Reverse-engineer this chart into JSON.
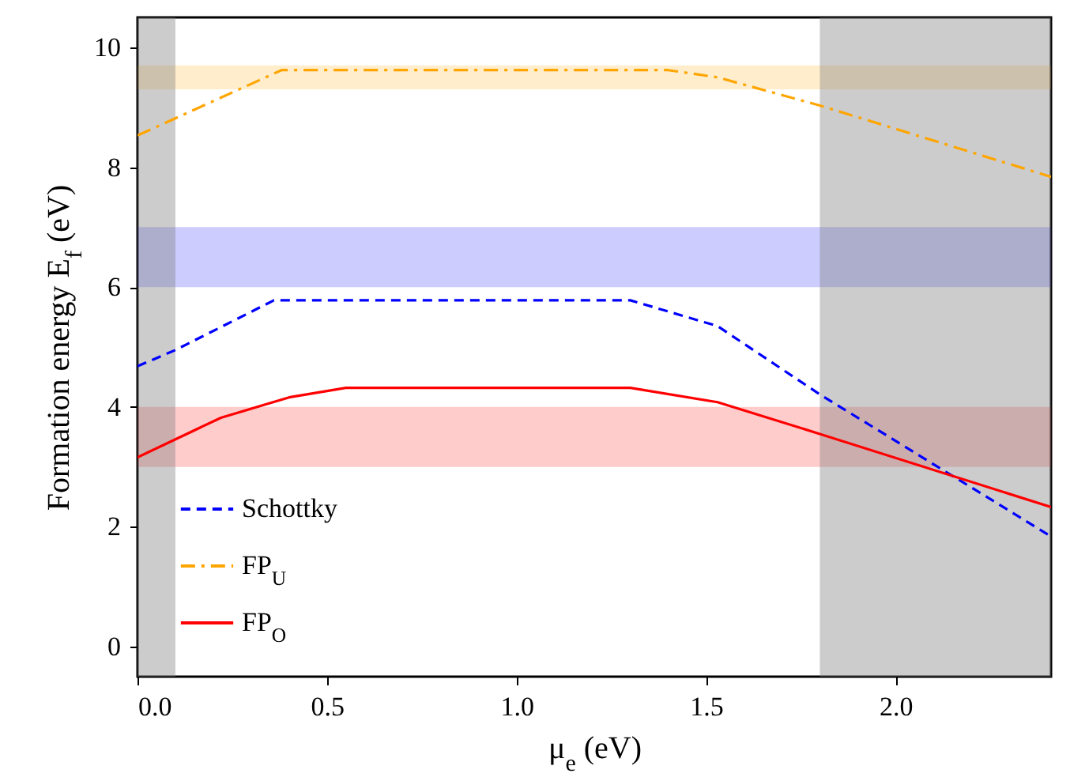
{
  "chart_data": {
    "type": "line",
    "xlabel": "μ$_{e}$ (eV)",
    "ylabel": "Formation energy E$_{f}$ (eV)",
    "xlim": [
      0,
      2.41
    ],
    "ylim": [
      -0.5,
      10.5
    ],
    "xticks": [
      {
        "value": 0,
        "label": "0.0"
      },
      {
        "value": 0.5,
        "label": "0.5"
      },
      {
        "value": 1,
        "label": "1.0"
      },
      {
        "value": 1.5,
        "label": "1.5"
      },
      {
        "value": 2,
        "label": "2.0"
      }
    ],
    "yticks": [
      0,
      2,
      4,
      6,
      8,
      10
    ],
    "legend": "bottom left",
    "series": [
      {
        "name": "Schottky",
        "color": "#0000ff",
        "line_style": "dashed",
        "x": [
          0,
          0.1,
          0.36,
          1.3,
          1.53,
          1.8,
          2.41
        ],
        "values": [
          4.68,
          4.95,
          5.78,
          5.78,
          5.35,
          4.21,
          1.84
        ]
      },
      {
        "name": "FP$_{U}$",
        "color": "#ffa500",
        "line_style": "dashdot",
        "x": [
          0,
          0.38,
          1.4,
          1.53,
          1.8,
          2.41
        ],
        "values": [
          8.53,
          9.62,
          9.62,
          9.5,
          9.03,
          7.84
        ]
      },
      {
        "name": "FP$_{O}$",
        "color": "#ff0000",
        "line_style": "solid",
        "x": [
          0,
          0.22,
          0.4,
          0.55,
          1.3,
          1.53,
          1.8,
          2.41
        ],
        "values": [
          3.16,
          3.82,
          4.16,
          4.32,
          4.32,
          4.08,
          3.55,
          2.33
        ]
      }
    ],
    "bands": [
      {
        "axis": "y",
        "from": 9.3,
        "to": 9.7,
        "color": "#ffa500"
      },
      {
        "axis": "y",
        "from": 6,
        "to": 7,
        "color": "#0000ff"
      },
      {
        "axis": "y",
        "from": 3,
        "to": 4,
        "color": "#ff0000"
      },
      {
        "axis": "x",
        "from": 0,
        "to": 0.1,
        "color": "#808080"
      },
      {
        "axis": "x",
        "from": 1.8,
        "to": 2.41,
        "color": "#808080"
      }
    ]
  }
}
